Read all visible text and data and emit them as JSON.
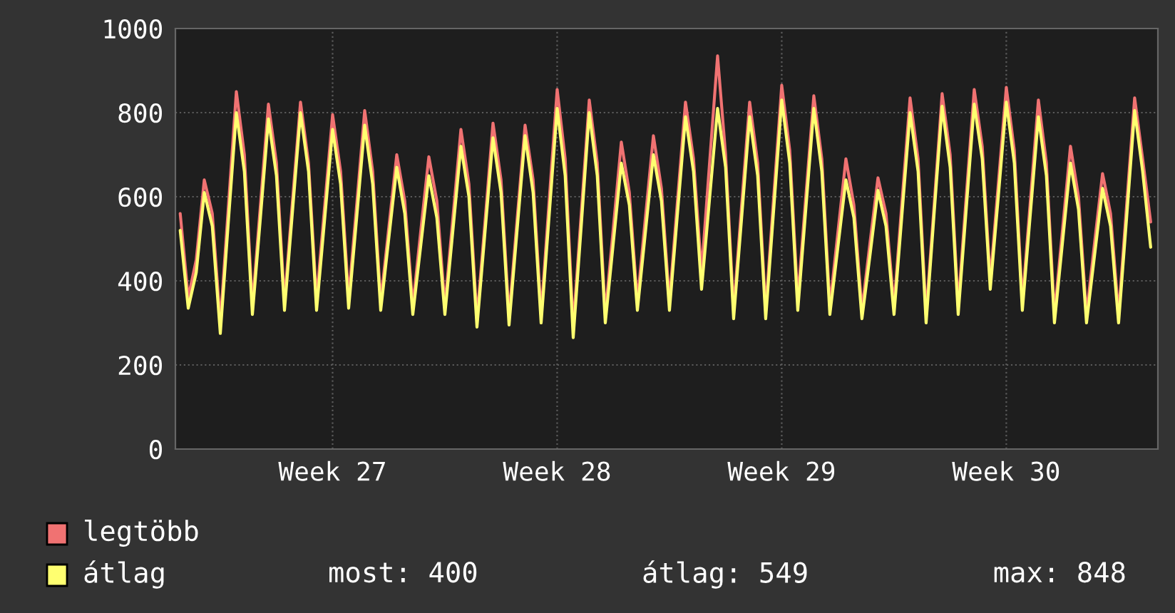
{
  "chart_data": {
    "type": "line",
    "categories": [
      null,
      null,
      null,
      null,
      null,
      null,
      null,
      null,
      null,
      null,
      null,
      null,
      null,
      null,
      null,
      null,
      null,
      null,
      null,
      "Week 27",
      null,
      null,
      null,
      null,
      null,
      null,
      null,
      null,
      null,
      null,
      null,
      null,
      null,
      null,
      null,
      null,
      null,
      null,
      null,
      null,
      null,
      null,
      null,
      null,
      null,
      null,
      null,
      "Week 28",
      null,
      null,
      null,
      null,
      null,
      null,
      null,
      null,
      null,
      null,
      null,
      null,
      null,
      null,
      null,
      null,
      null,
      null,
      null,
      null,
      null,
      null,
      null,
      null,
      null,
      null,
      null,
      "Week 29",
      null,
      null,
      null,
      null,
      null,
      null,
      null,
      null,
      null,
      null,
      null,
      null,
      null,
      null,
      null,
      null,
      null,
      null,
      null,
      null,
      null,
      null,
      null,
      null,
      null,
      null,
      null,
      "Week 30",
      null,
      null,
      null,
      null,
      null,
      null,
      null,
      null,
      null,
      null,
      null,
      null,
      null,
      null,
      null,
      null,
      null,
      null
    ],
    "series": [
      {
        "name": "legtöbb",
        "color": "#f07272",
        "values": [
          560,
          360,
          450,
          640,
          560,
          300,
          575,
          850,
          700,
          340,
          580,
          820,
          680,
          350,
          590,
          825,
          680,
          355,
          575,
          795,
          660,
          360,
          580,
          805,
          660,
          350,
          525,
          700,
          590,
          340,
          520,
          695,
          590,
          340,
          550,
          760,
          630,
          310,
          540,
          775,
          640,
          315,
          545,
          770,
          640,
          320,
          590,
          855,
          690,
          290,
          560,
          830,
          680,
          320,
          525,
          730,
          610,
          350,
          550,
          745,
          620,
          350,
          590,
          825,
          690,
          420,
          680,
          935,
          700,
          330,
          580,
          825,
          680,
          330,
          600,
          865,
          710,
          355,
          600,
          840,
          690,
          340,
          515,
          690,
          580,
          330,
          490,
          645,
          560,
          340,
          590,
          835,
          690,
          320,
          580,
          845,
          700,
          340,
          600,
          855,
          720,
          400,
          630,
          860,
          710,
          350,
          590,
          830,
          680,
          320,
          520,
          720,
          600,
          320,
          490,
          655,
          560,
          320,
          580,
          835,
          690,
          540
        ]
      },
      {
        "name": "átlag",
        "color": "#ffff70",
        "values": [
          520,
          335,
          420,
          610,
          530,
          275,
          540,
          800,
          660,
          320,
          550,
          785,
          650,
          330,
          565,
          800,
          660,
          330,
          545,
          760,
          630,
          335,
          550,
          770,
          630,
          330,
          500,
          670,
          560,
          320,
          485,
          650,
          550,
          320,
          520,
          720,
          600,
          290,
          515,
          740,
          610,
          295,
          520,
          745,
          610,
          300,
          555,
          810,
          650,
          265,
          530,
          800,
          650,
          300,
          490,
          680,
          580,
          330,
          515,
          700,
          590,
          330,
          560,
          790,
          660,
          380,
          595,
          810,
          670,
          310,
          550,
          790,
          650,
          310,
          570,
          830,
          680,
          330,
          570,
          810,
          660,
          320,
          480,
          640,
          550,
          310,
          460,
          615,
          530,
          320,
          560,
          800,
          660,
          300,
          560,
          815,
          670,
          320,
          570,
          820,
          690,
          380,
          600,
          825,
          680,
          330,
          560,
          790,
          650,
          300,
          490,
          680,
          570,
          300,
          460,
          620,
          530,
          300,
          550,
          805,
          660,
          480
        ]
      }
    ],
    "ylim": [
      0,
      1000
    ],
    "yticks": [
      0,
      200,
      400,
      600,
      800,
      1000
    ],
    "grid": true,
    "legend": "bottom left",
    "marker": "none",
    "line_style": "solid",
    "annotations": [
      "most: 400",
      "átlag: 549",
      "max: 848"
    ]
  }
}
